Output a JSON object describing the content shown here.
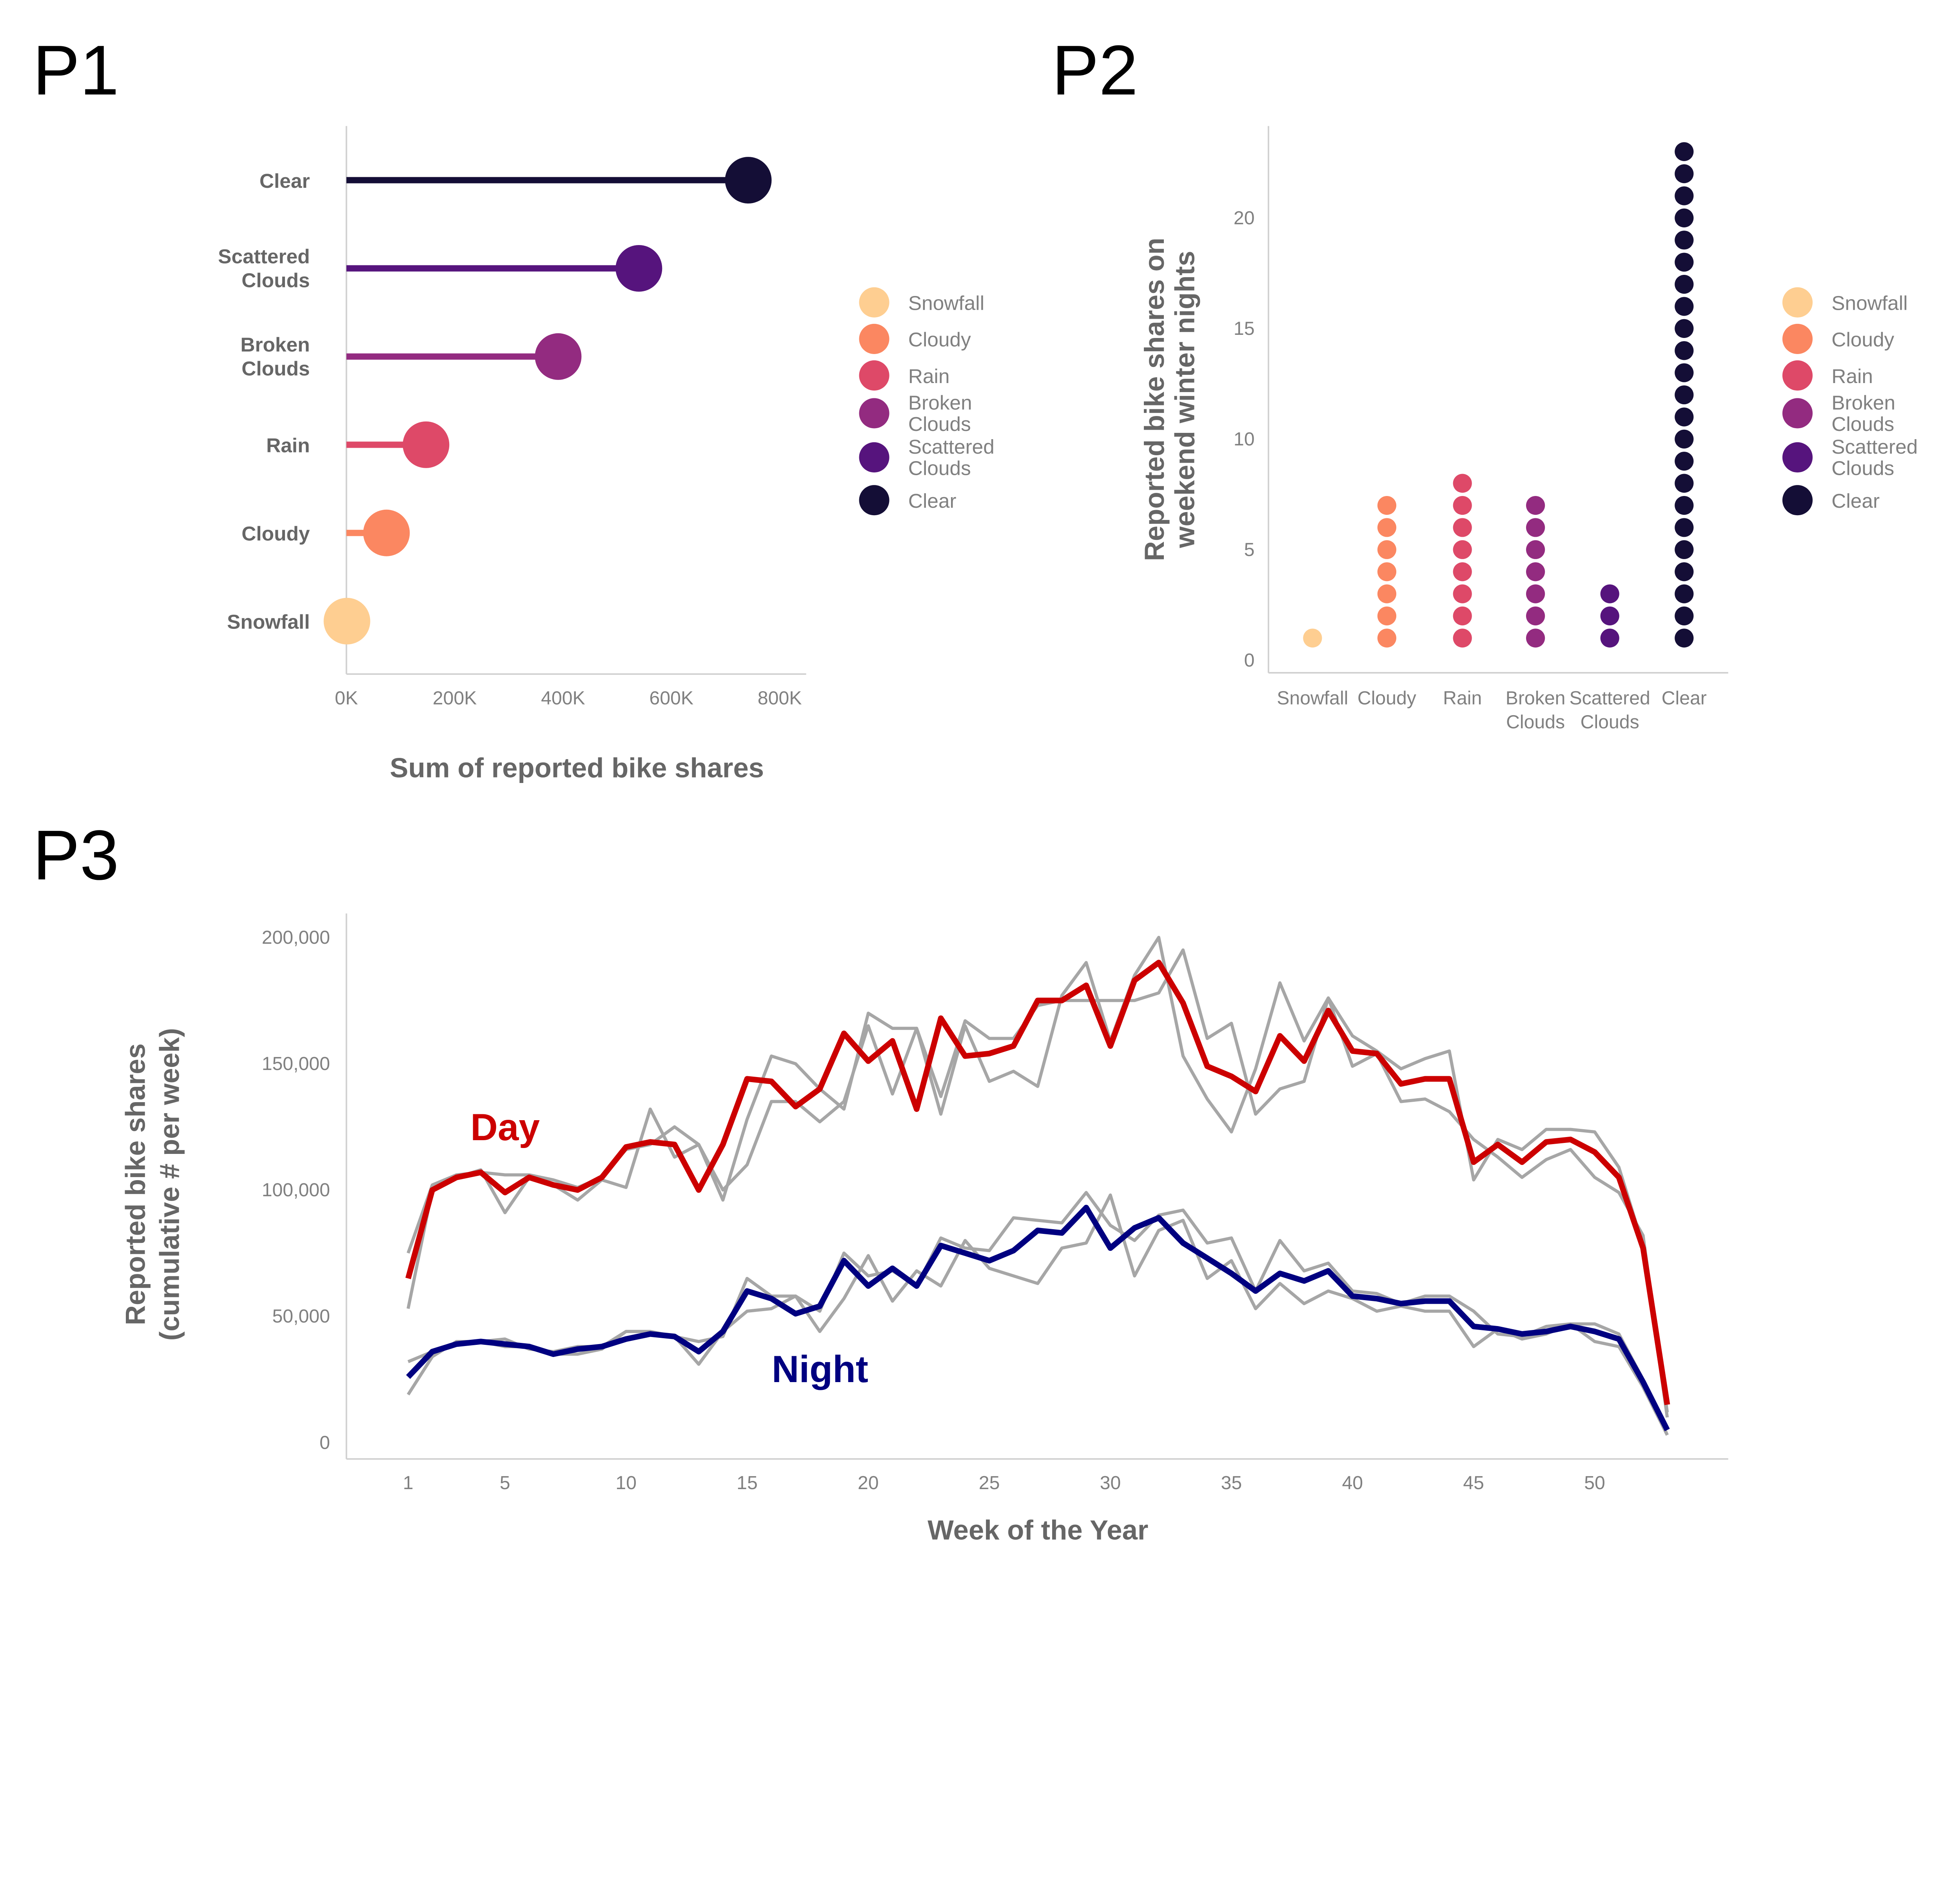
{
  "panels": {
    "p1": "P1",
    "p2": "P2",
    "p3": "P3"
  },
  "colors": {
    "Snowfall": "#FECE91",
    "Cloudy": "#FB8761",
    "Rain": "#DE4968",
    "Broken Clouds": "#932B80",
    "Scattered Clouds": "#56147D",
    "Clear": "#140E36",
    "day": "#CC0000",
    "night": "#000080",
    "other_years": "#A6A6A6"
  },
  "legend": [
    "Snowfall",
    "Cloudy",
    "Rain",
    "Broken Clouds",
    "Scattered Clouds",
    "Clear"
  ],
  "chart_data": [
    {
      "id": "p1",
      "type": "lollipop",
      "orientation": "horizontal",
      "categories": [
        "Snowfall",
        "Cloudy",
        "Rain",
        "Broken Clouds",
        "Scattered Clouds",
        "Clear"
      ],
      "values": [
        1000,
        74000,
        147000,
        391000,
        540000,
        742000
      ],
      "xlabel": "Sum of reported bike shares",
      "ylabel": "",
      "xlim": [
        0,
        800000
      ],
      "xticks": [
        0,
        200000,
        400000,
        600000,
        800000
      ],
      "xtick_labels": [
        "0K",
        "200K",
        "400K",
        "600K",
        "800K"
      ],
      "legend_position": "right",
      "grid": false
    },
    {
      "id": "p2",
      "type": "dot-strip",
      "categories": [
        "Snowfall",
        "Cloudy",
        "Rain",
        "Broken Clouds",
        "Scattered Clouds",
        "Clear"
      ],
      "values": [
        1,
        7,
        8,
        7,
        3,
        23
      ],
      "ylabel": "Reported bike shares on weekend winter nights",
      "xlabel": "",
      "ylim": [
        0,
        23
      ],
      "yticks": [
        0,
        5,
        10,
        15,
        20
      ],
      "legend_position": "right",
      "grid": false
    },
    {
      "id": "p3",
      "type": "line",
      "xlabel": "Week of the Year",
      "ylabel": "Reported bike shares (cumulative # per week)",
      "xlim": [
        1,
        53
      ],
      "ylim": [
        0,
        200000
      ],
      "xticks": [
        1,
        5,
        10,
        15,
        20,
        25,
        30,
        35,
        40,
        45,
        50
      ],
      "yticks": [
        0,
        50000,
        100000,
        150000,
        200000
      ],
      "ytick_labels": [
        "0",
        "50,000",
        "100,000",
        "150,000",
        "200,000"
      ],
      "annotations": [
        {
          "text": "Day",
          "color": "#CC0000"
        },
        {
          "text": "Night",
          "color": "#000080"
        }
      ],
      "grid": false,
      "series": [
        {
          "group": "day",
          "highlight": true,
          "values": [
            65000,
            100000,
            105000,
            107000,
            99000,
            105000,
            102000,
            100000,
            105000,
            117000,
            119000,
            118000,
            100000,
            118000,
            144000,
            143000,
            133000,
            140000,
            162000,
            151000,
            159000,
            132000,
            168000,
            153000,
            154000,
            157000,
            175000,
            175000,
            181000,
            157000,
            183000,
            190000,
            174000,
            149000,
            145000,
            139000,
            161000,
            151000,
            171000,
            155000,
            154000,
            142000,
            144000,
            144000,
            111000,
            118000,
            111000,
            119000,
            120000,
            115000,
            105000,
            77000,
            15000
          ]
        },
        {
          "group": "night",
          "highlight": true,
          "values": [
            26000,
            36000,
            39000,
            40000,
            39000,
            38000,
            35000,
            37000,
            38000,
            41000,
            43000,
            42000,
            36000,
            44000,
            60000,
            57000,
            51000,
            54000,
            72000,
            62000,
            69000,
            62000,
            78000,
            75000,
            72000,
            76000,
            84000,
            83000,
            93000,
            77000,
            85000,
            89000,
            79000,
            73000,
            67000,
            60000,
            67000,
            64000,
            68000,
            58000,
            57000,
            55000,
            56000,
            56000,
            46000,
            45000,
            43000,
            44000,
            46000,
            44000,
            41000,
            24000,
            5000
          ]
        },
        {
          "group": "day",
          "highlight": false,
          "values": [
            53000,
            100000,
            105000,
            108000,
            91000,
            105000,
            102000,
            96000,
            104000,
            101000,
            132000,
            113000,
            118000,
            96000,
            128000,
            153000,
            150000,
            140000,
            132000,
            170000,
            164000,
            164000,
            130000,
            165000,
            143000,
            147000,
            141000,
            177000,
            190000,
            159000,
            185000,
            200000,
            153000,
            136000,
            123000,
            148000,
            182000,
            159000,
            176000,
            149000,
            154000,
            135000,
            136000,
            131000,
            120000,
            113000,
            105000,
            112000,
            116000,
            105000,
            99000,
            82000,
            12000
          ]
        },
        {
          "group": "day",
          "highlight": false,
          "values": [
            75000,
            102000,
            106000,
            107000,
            106000,
            106000,
            104000,
            101000,
            105000,
            116000,
            118000,
            125000,
            118000,
            100000,
            110000,
            135000,
            135000,
            127000,
            135000,
            165000,
            138000,
            164000,
            137000,
            167000,
            160000,
            160000,
            173000,
            175000,
            175000,
            175000,
            175000,
            178000,
            195000,
            160000,
            166000,
            130000,
            140000,
            143000,
            176000,
            161000,
            155000,
            148000,
            152000,
            155000,
            104000,
            120000,
            116000,
            124000,
            124000,
            123000,
            109000,
            78000,
            10000
          ]
        },
        {
          "group": "night",
          "highlight": false,
          "values": [
            19000,
            34000,
            40000,
            40000,
            41000,
            37000,
            36000,
            38000,
            38000,
            44000,
            44000,
            42000,
            31000,
            44000,
            52000,
            53000,
            58000,
            44000,
            57000,
            74000,
            56000,
            68000,
            62000,
            80000,
            69000,
            66000,
            63000,
            77000,
            79000,
            98000,
            66000,
            84000,
            88000,
            65000,
            72000,
            53000,
            63000,
            55000,
            60000,
            57000,
            52000,
            54000,
            52000,
            52000,
            38000,
            45000,
            41000,
            43000,
            47000,
            40000,
            38000,
            22000,
            3000
          ]
        },
        {
          "group": "night",
          "highlight": false,
          "values": [
            32000,
            36000,
            39000,
            40000,
            38000,
            38000,
            35000,
            35000,
            37000,
            44000,
            44000,
            42000,
            40000,
            42000,
            65000,
            58000,
            58000,
            52000,
            75000,
            66000,
            68000,
            62000,
            81000,
            77000,
            76000,
            89000,
            88000,
            87000,
            99000,
            86000,
            80000,
            90000,
            92000,
            79000,
            81000,
            60000,
            80000,
            68000,
            71000,
            60000,
            59000,
            55000,
            58000,
            58000,
            52000,
            43000,
            42000,
            46000,
            47000,
            47000,
            43000,
            25000,
            3000
          ]
        }
      ]
    }
  ]
}
